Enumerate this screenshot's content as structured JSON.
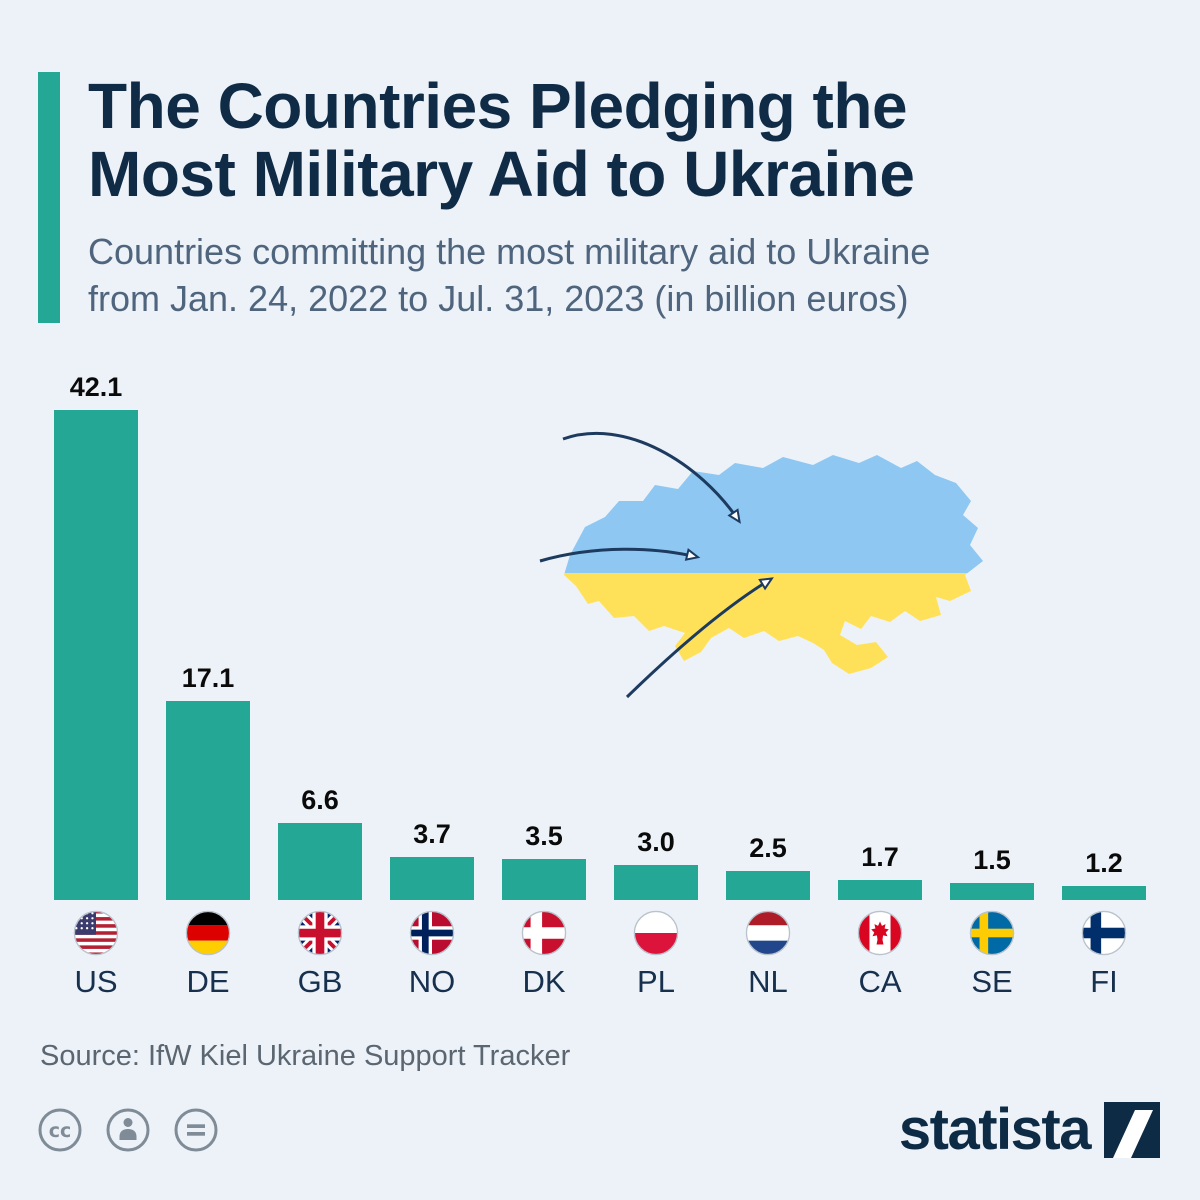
{
  "colors": {
    "background": "#edf2f8",
    "accent_teal": "#24a795",
    "title_navy": "#0f2b46",
    "subtitle_gray_blue": "#4f657d",
    "map_blue": "#8ec7f2",
    "map_yellow": "#ffe159",
    "arrow_navy": "#1d3a5f",
    "source_gray": "#5b6670"
  },
  "header": {
    "title_lines": [
      "The Countries Pledging the",
      "Most Military Aid to Ukraine"
    ],
    "subtitle_lines": [
      "Countries committing the most military aid to Ukraine",
      "from Jan. 24, 2022 to Jul. 31, 2023 (in billion euros)"
    ]
  },
  "chart_data": {
    "type": "bar",
    "title": "The Countries Pledging the Most Military Aid to Ukraine",
    "subtitle": "Countries committing the most military aid to Ukraine from Jan. 24, 2022 to Jul. 31, 2023 (in billion euros)",
    "unit": "billion euros",
    "categories": [
      "US",
      "DE",
      "GB",
      "NO",
      "DK",
      "PL",
      "NL",
      "CA",
      "SE",
      "FI"
    ],
    "values": [
      42.1,
      17.1,
      6.6,
      3.7,
      3.5,
      3.0,
      2.5,
      1.7,
      1.5,
      1.2
    ],
    "value_labels": [
      "42.1",
      "17.1",
      "6.6",
      "3.7",
      "3.5",
      "3.0",
      "2.5",
      "1.7",
      "1.5",
      "1.2"
    ],
    "bar_color": "#24a795",
    "ylim": [
      0,
      45
    ],
    "grid": false,
    "legend": false,
    "x_axis_style": "circular country flags above ISO country codes"
  },
  "footer": {
    "source": "Source: IfW Kiel Ukraine Support Tracker",
    "brand": "statista",
    "license": [
      "cc",
      "attribution",
      "no-derivatives"
    ]
  }
}
